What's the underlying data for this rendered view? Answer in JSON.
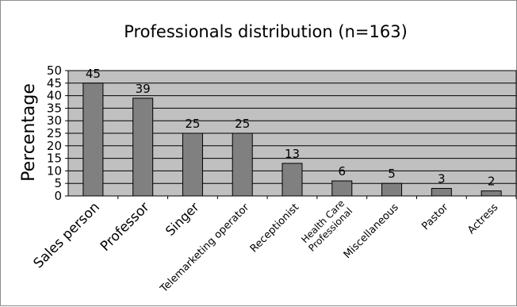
{
  "chart_data": {
    "type": "bar",
    "title": "Professionals distribution (n=163)",
    "ylabel": "Percentage",
    "xlabel": "",
    "ylim": [
      0,
      50
    ],
    "ytick_step": 5,
    "grid": true,
    "categories": [
      "Sales person",
      "Professor",
      "Singer",
      "Telemarketing operator",
      "Receptionist",
      "Health Care Professional",
      "Miscellaneous",
      "Pastor",
      "Actress"
    ],
    "category_lines": [
      [
        "Sales person"
      ],
      [
        "Professor"
      ],
      [
        "Singer"
      ],
      [
        "Telemarketing operator"
      ],
      [
        "Receptionist"
      ],
      [
        "Health Care",
        "Professional"
      ],
      [
        "Miscellaneous"
      ],
      [
        "Pastor"
      ],
      [
        "Actress"
      ]
    ],
    "values": [
      45,
      39,
      25,
      25,
      13,
      6,
      5,
      3,
      2
    ],
    "data_labels": [
      "45",
      "39",
      "25",
      "25",
      "13",
      "6",
      "5",
      "3",
      "2"
    ],
    "colors": {
      "plot_background": "#c0c0c0",
      "bar_fill": "#808080",
      "bar_stroke": "#000000",
      "gridline": "#000000"
    }
  }
}
